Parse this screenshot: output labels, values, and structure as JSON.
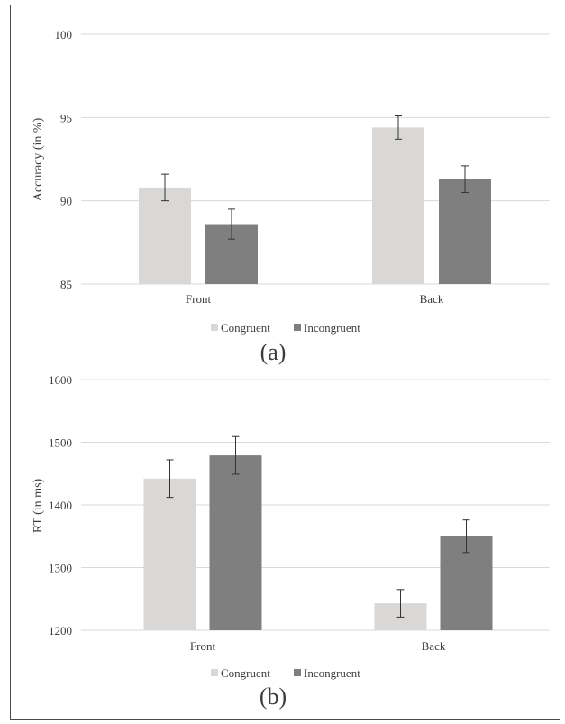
{
  "colors": {
    "congruent": "#d9d8d6",
    "incongruent": "#7f7f7f",
    "grid": "#d9d9d9",
    "error_bar": "#333333",
    "text": "#3c3c3c"
  },
  "chart_data": [
    {
      "type": "bar",
      "panel_label": "(a)",
      "ylabel": "Accuracy (in %)",
      "xlabel": "",
      "categories": [
        "Front",
        "Back"
      ],
      "series": [
        {
          "name": "Congruent",
          "values": [
            90.8,
            94.4
          ],
          "errors": [
            0.8,
            0.7
          ]
        },
        {
          "name": "Incongruent",
          "values": [
            88.6,
            91.3
          ],
          "errors": [
            0.9,
            0.8
          ]
        }
      ],
      "ylim": [
        85,
        100
      ],
      "yticks": [
        85,
        90,
        95,
        100
      ],
      "grid": true,
      "legend": "bottom"
    },
    {
      "type": "bar",
      "panel_label": "(b)",
      "ylabel": "RT (in ms)",
      "xlabel": "",
      "categories": [
        "Front",
        "Back"
      ],
      "series": [
        {
          "name": "Congruent",
          "values": [
            1442,
            1243
          ],
          "errors": [
            30,
            22
          ]
        },
        {
          "name": "Incongruent",
          "values": [
            1479,
            1350
          ],
          "errors": [
            30,
            26
          ]
        }
      ],
      "ylim": [
        1200,
        1600
      ],
      "yticks": [
        1200,
        1300,
        1400,
        1500,
        1600
      ],
      "grid": true,
      "legend": "bottom"
    }
  ]
}
